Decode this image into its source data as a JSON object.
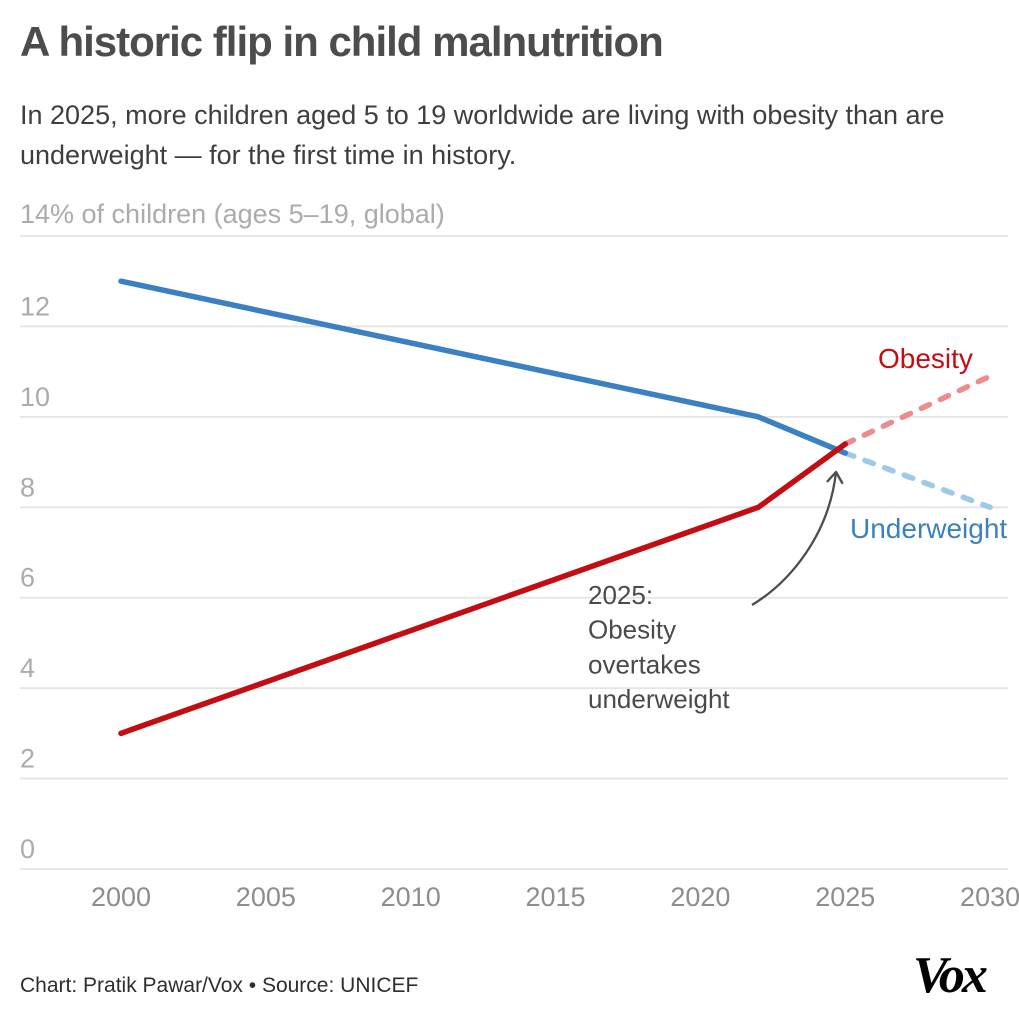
{
  "header": {
    "title": "A historic flip in child malnutrition",
    "subtitle": "In 2025, more children aged 5 to 19 worldwide are living with obesity than are underweight — for the first time in history."
  },
  "chart_data": {
    "type": "line",
    "title": "A historic flip in child malnutrition",
    "y_axis_top_label": "14% of children (ages 5–19, global)",
    "y_ticks": [
      12,
      10,
      8,
      6,
      4,
      2,
      0
    ],
    "y_top_tick_value": 14,
    "ylim": [
      0,
      14
    ],
    "x_ticks": [
      2000,
      2005,
      2010,
      2015,
      2020,
      2025,
      2030
    ],
    "xlim": [
      2000,
      2030
    ],
    "grid": "horizontal",
    "legend_position": "inline-labels",
    "series": [
      {
        "name": "Underweight",
        "color": "#3a80c3",
        "projected_color": "#9dcae7",
        "solid_points": [
          [
            2000,
            13.0
          ],
          [
            2022,
            10.0
          ],
          [
            2025,
            9.2
          ]
        ],
        "projected_points": [
          [
            2025,
            9.2
          ],
          [
            2030,
            8.0
          ]
        ]
      },
      {
        "name": "Obesity",
        "color": "#c40d12",
        "projected_color": "#ef8a8d",
        "solid_points": [
          [
            2000,
            3.0
          ],
          [
            2022,
            8.0
          ],
          [
            2025,
            9.4
          ]
        ],
        "projected_points": [
          [
            2025,
            9.4
          ],
          [
            2030,
            10.9
          ]
        ]
      }
    ],
    "annotation": {
      "lines": [
        "2025:",
        "Obesity",
        "overtakes",
        "underweight"
      ],
      "points_to": "crossover of obesity and underweight lines at 2025"
    }
  },
  "colors": {
    "gridline": "#e4e4e4",
    "y_tick_text": "#ababab",
    "x_tick_text": "#8d8d8d",
    "annotation_text": "#4a4a4a",
    "arrow": "#4d4d4d"
  },
  "footer": {
    "credit": "Chart: Pratik Pawar/Vox • Source: UNICEF",
    "logo_text": "Vox"
  }
}
